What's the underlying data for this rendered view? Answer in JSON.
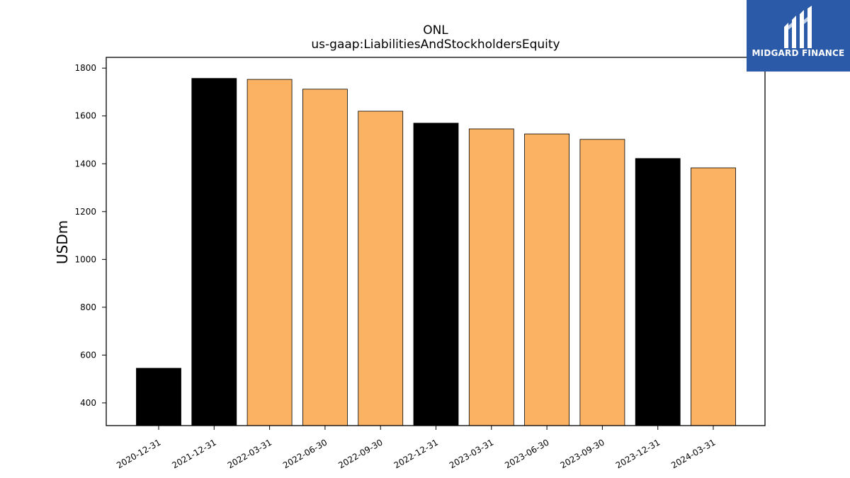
{
  "brand": {
    "name": "MIDGARD FINANCE",
    "logo_icon": "midgard-m-logo-icon",
    "background": "#2a5aa8"
  },
  "chart_data": {
    "type": "bar",
    "title": "ONL",
    "subtitle": "us-gaap:LiabilitiesAndStockholdersEquity",
    "xlabel": "",
    "ylabel": "USDm",
    "ylim": [
      305,
      1845
    ],
    "yticks": [
      400,
      600,
      800,
      1000,
      1200,
      1400,
      1600,
      1800
    ],
    "grid": false,
    "categories": [
      "2020-12-31",
      "2021-12-31",
      "2022-03-31",
      "2022-06-30",
      "2022-09-30",
      "2022-12-31",
      "2023-03-31",
      "2023-06-30",
      "2023-09-30",
      "2023-12-31",
      "2024-03-31"
    ],
    "values": [
      545,
      1757,
      1753,
      1712,
      1620,
      1570,
      1546,
      1525,
      1502,
      1422,
      1383
    ],
    "bar_colors": [
      "#000000",
      "#000000",
      "#fbb363",
      "#fbb363",
      "#fbb363",
      "#000000",
      "#fbb363",
      "#fbb363",
      "#fbb363",
      "#000000",
      "#fbb363"
    ]
  }
}
